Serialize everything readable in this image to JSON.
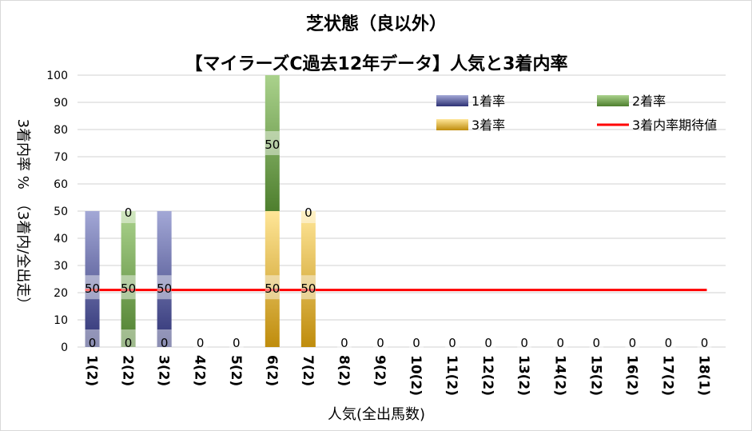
{
  "chart_data": {
    "type": "bar",
    "stacked": true,
    "title": "芝状態（良以外）",
    "subtitle": "【マイラーズC過去12年データ】人気と3着内率",
    "xlabel": "人気(全出馬数)",
    "ylabel": "3着内率 %　（3着内/全出走）",
    "ylim": [
      0,
      100
    ],
    "yticks": [
      0,
      10,
      20,
      30,
      40,
      50,
      60,
      70,
      80,
      90,
      100
    ],
    "grid": true,
    "legend_position": "top-right",
    "categories": [
      "1(2)",
      "2(2)",
      "3(2)",
      "4(2)",
      "5(2)",
      "6(2)",
      "7(2)",
      "8(2)",
      "9(2)",
      "10(2)",
      "11(2)",
      "12(2)",
      "13(2)",
      "14(2)",
      "15(2)",
      "16(2)",
      "17(2)",
      "18(1)"
    ],
    "series": [
      {
        "name": "1着率",
        "color_dark": "#2e3275",
        "color_light": "#a3a8d6",
        "values": [
          50,
          0,
          50,
          0,
          0,
          0,
          0,
          0,
          0,
          0,
          0,
          0,
          0,
          0,
          0,
          0,
          0,
          0
        ]
      },
      {
        "name": "3着率",
        "color_dark": "#bf8c0c",
        "color_light": "#ffe698",
        "values": [
          0,
          0,
          0,
          0,
          0,
          50,
          50,
          0,
          0,
          0,
          0,
          0,
          0,
          0,
          0,
          0,
          0,
          0
        ]
      },
      {
        "name": "2着率",
        "color_dark": "#4e7f2e",
        "color_light": "#aad28c",
        "values": [
          0,
          50,
          0,
          0,
          0,
          50,
          0,
          0,
          0,
          0,
          0,
          0,
          0,
          0,
          0,
          0,
          0,
          0
        ]
      }
    ],
    "line": {
      "name": "3着内率期待値",
      "color": "#ff0000",
      "value": 21
    },
    "legend": [
      "1着率",
      "2着率",
      "3着率",
      "3着内率期待値"
    ],
    "data_labels": [
      {
        "category": 0,
        "text": "0",
        "at": "bottom"
      },
      {
        "category": 0,
        "text": "50",
        "at": 22
      },
      {
        "category": 1,
        "text": "0",
        "at": "bottom"
      },
      {
        "category": 1,
        "text": "50",
        "at": 22
      },
      {
        "category": 1,
        "text": "0",
        "at": 50
      },
      {
        "category": 2,
        "text": "0",
        "at": "bottom"
      },
      {
        "category": 2,
        "text": "50",
        "at": 22
      },
      {
        "category": 3,
        "text": "0",
        "at": "bottom"
      },
      {
        "category": 4,
        "text": "0",
        "at": "bottom"
      },
      {
        "category": 5,
        "text": "50",
        "at": 22
      },
      {
        "category": 5,
        "text": "50",
        "at": 75
      },
      {
        "category": 6,
        "text": "50",
        "at": 22
      },
      {
        "category": 6,
        "text": "0",
        "at": 50
      },
      {
        "category": 7,
        "text": "0",
        "at": "bottom"
      },
      {
        "category": 8,
        "text": "0",
        "at": "bottom"
      },
      {
        "category": 9,
        "text": "0",
        "at": "bottom"
      },
      {
        "category": 10,
        "text": "0",
        "at": "bottom"
      },
      {
        "category": 11,
        "text": "0",
        "at": "bottom"
      },
      {
        "category": 12,
        "text": "0",
        "at": "bottom"
      },
      {
        "category": 13,
        "text": "0",
        "at": "bottom"
      },
      {
        "category": 14,
        "text": "0",
        "at": "bottom"
      },
      {
        "category": 15,
        "text": "0",
        "at": "bottom"
      },
      {
        "category": 16,
        "text": "0",
        "at": "bottom"
      },
      {
        "category": 17,
        "text": "0",
        "at": "bottom"
      }
    ]
  }
}
